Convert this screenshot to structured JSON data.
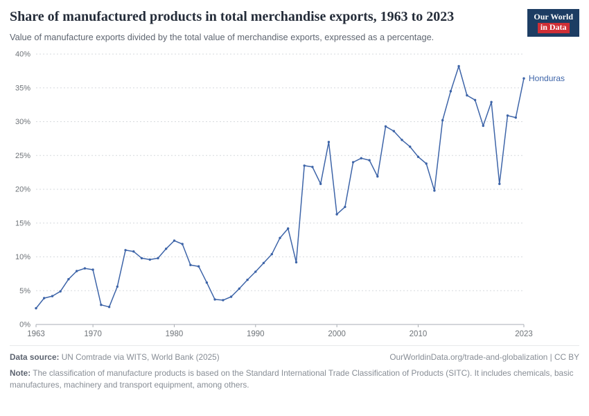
{
  "header": {
    "title": "Share of manufactured products in total merchandise exports, 1963 to 2023",
    "subtitle": "Value of manufacture exports divided by the total value of merchandise exports, expressed as a percentage.",
    "logo": {
      "line1": "Our World",
      "line2": "in Data"
    }
  },
  "chart_data": {
    "type": "line",
    "title": "Share of manufactured products in total merchandise exports, 1963 to 2023",
    "xlabel": "",
    "ylabel": "",
    "xlim": [
      1963,
      2023
    ],
    "ylim": [
      0,
      40
    ],
    "x_ticks": [
      1963,
      1970,
      1980,
      1990,
      2000,
      2010,
      2023
    ],
    "y_ticks": [
      "0%",
      "5%",
      "10%",
      "15%",
      "20%",
      "25%",
      "30%",
      "35%",
      "40%"
    ],
    "grid": "horizontal-dotted",
    "legend_position": "end-of-line",
    "colors": {
      "grid": "#d6d9dd",
      "axis": "#a9aeb4",
      "tick_label": "#6e7378"
    },
    "series": [
      {
        "name": "Honduras",
        "color": "#3d64a8",
        "x": [
          1963,
          1964,
          1965,
          1966,
          1967,
          1968,
          1969,
          1970,
          1971,
          1972,
          1973,
          1974,
          1975,
          1976,
          1977,
          1978,
          1979,
          1980,
          1981,
          1982,
          1983,
          1984,
          1985,
          1986,
          1987,
          1988,
          1989,
          1990,
          1991,
          1992,
          1993,
          1994,
          1995,
          1996,
          1997,
          1998,
          1999,
          2000,
          2001,
          2002,
          2003,
          2004,
          2005,
          2006,
          2007,
          2008,
          2009,
          2010,
          2011,
          2012,
          2013,
          2014,
          2015,
          2016,
          2017,
          2018,
          2019,
          2020,
          2021,
          2022,
          2023
        ],
        "values": [
          2.4,
          3.9,
          4.2,
          4.9,
          6.7,
          7.9,
          8.3,
          8.1,
          2.9,
          2.6,
          5.6,
          11,
          10.8,
          9.8,
          9.6,
          9.8,
          11.2,
          12.4,
          11.9,
          8.8,
          8.6,
          6.2,
          3.7,
          3.6,
          4.1,
          5.3,
          6.6,
          7.8,
          9.1,
          10.4,
          12.8,
          14.2,
          9.2,
          23.5,
          23.3,
          20.8,
          27,
          16.3,
          17.4,
          24,
          24.6,
          24.3,
          21.9,
          29.3,
          28.6,
          27.3,
          26.3,
          24.8,
          23.8,
          19.8,
          30.2,
          34.5,
          38.2,
          33.9,
          33.2,
          29.4,
          32.9,
          20.8,
          30.9,
          30.6,
          36.4
        ]
      }
    ]
  },
  "footer": {
    "datasource_label": "Data source:",
    "datasource": "UN Comtrade via WITS, World Bank (2025)",
    "license": "OurWorldinData.org/trade-and-globalization | CC BY",
    "note_label": "Note:",
    "note": "The classification of manufacture products is based on the Standard International Trade Classification of Products (SITC). It includes chemicals, basic manufactures, machinery and transport equipment, among others."
  }
}
